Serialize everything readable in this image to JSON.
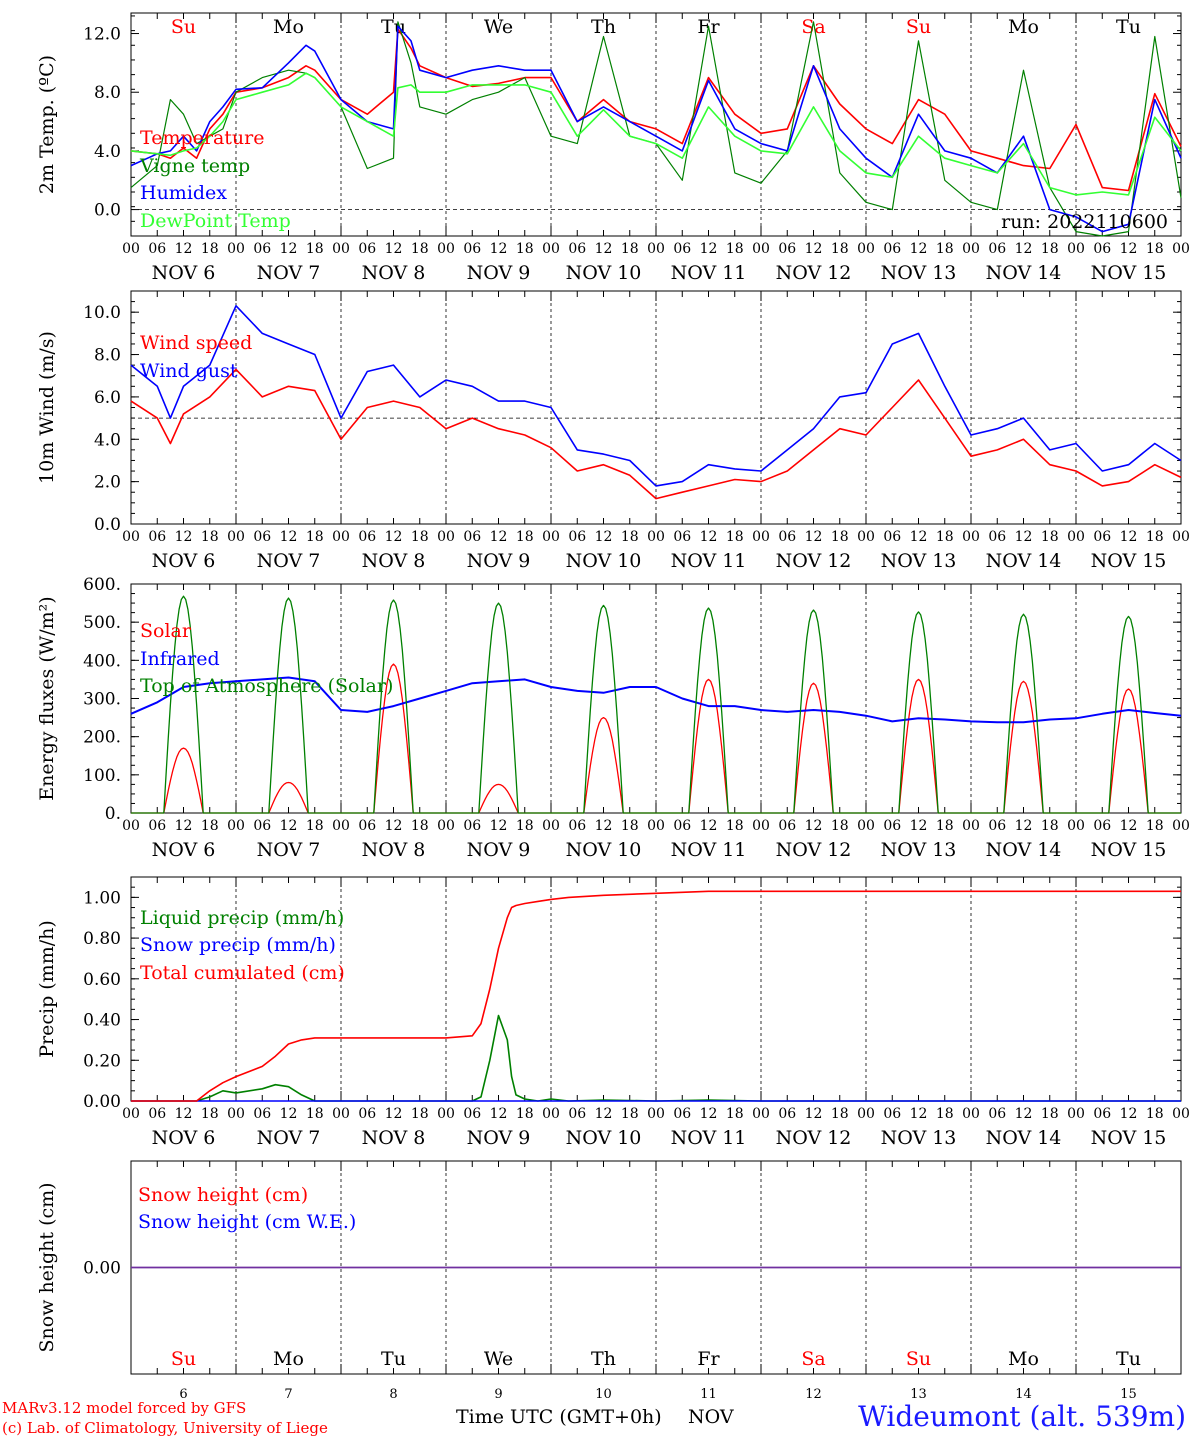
{
  "run_label": "run: 2022110600",
  "footer": {
    "credit_line1": "MARv3.12 model forced by GFS",
    "credit_line2": "(c) Lab. of Climatology, University of Liege",
    "xaxis_title": "Time UTC (GMT+0h)",
    "xaxis_month": "NOV",
    "station": "Wideumont (alt. 539m)"
  },
  "days": {
    "weekdays": [
      "Su",
      "Mo",
      "Tu",
      "We",
      "Th",
      "Fr",
      "Sa",
      "Su",
      "Mo",
      "Tu"
    ],
    "weekday_colors": [
      "#ff0000",
      "#000000",
      "#000000",
      "#000000",
      "#000000",
      "#000000",
      "#ff0000",
      "#ff0000",
      "#000000",
      "#000000"
    ],
    "date_labels": [
      "NOV 6",
      "NOV 7",
      "NOV 8",
      "NOV 9",
      "NOV 10",
      "NOV 11",
      "NOV 12",
      "NOV 13",
      "NOV 14",
      "NOV 15"
    ],
    "day_numbers": [
      "6",
      "7",
      "8",
      "9",
      "10",
      "11",
      "12",
      "13",
      "14",
      "15"
    ],
    "hour_ticks": [
      "00",
      "06",
      "12",
      "18"
    ],
    "final_tick": "00"
  },
  "colors": {
    "red": "#ff0000",
    "dark_green": "#008000",
    "blue": "#0000ff",
    "light_green": "#33ff33",
    "purple": "#7030a0",
    "axis": "#000000"
  },
  "chart_data": [
    {
      "type": "line",
      "ylabel": "2m Temp. (ºC)",
      "ylim": [
        -1.8,
        13.4
      ],
      "yticks": [
        "0.0",
        "4.0",
        "8.0",
        "12.0"
      ],
      "ytick_values": [
        0,
        4,
        8,
        12
      ],
      "reference_line": 0,
      "x_unit": "hours since NOV 6 00 UTC",
      "x": [
        0,
        6,
        9,
        12,
        15,
        18,
        21,
        24,
        30,
        36,
        40,
        42,
        48,
        54,
        60,
        61,
        64,
        66,
        72,
        78,
        84,
        90,
        96,
        102,
        108,
        114,
        120,
        126,
        132,
        138,
        144,
        150,
        156,
        162,
        168,
        174,
        180,
        186,
        192,
        198,
        204,
        210,
        216,
        222,
        228,
        234,
        240
      ],
      "series": [
        {
          "name": "Temperature",
          "color": "#ff0000",
          "values": [
            4.0,
            3.8,
            3.5,
            4.2,
            3.5,
            5.5,
            6.5,
            8.0,
            8.3,
            9.0,
            9.8,
            9.5,
            7.5,
            6.5,
            8.0,
            12.3,
            11.0,
            9.8,
            9.0,
            8.4,
            8.6,
            9.0,
            9.0,
            6.0,
            7.5,
            6.0,
            5.5,
            4.5,
            9.0,
            6.5,
            5.2,
            5.5,
            9.8,
            7.2,
            5.5,
            4.5,
            7.5,
            6.5,
            4.0,
            3.5,
            3.0,
            2.8,
            5.8,
            1.5,
            1.3,
            7.9,
            4.3
          ]
        },
        {
          "name": "Vigne temp",
          "color": "#008000",
          "values": [
            1.5,
            3.0,
            7.5,
            6.5,
            4.5,
            5.0,
            5.5,
            8.0,
            9.0,
            9.5,
            9.3,
            9.0,
            7.0,
            2.8,
            3.5,
            12.8,
            10.0,
            7.0,
            6.5,
            7.5,
            8.0,
            9.0,
            5.0,
            4.5,
            11.8,
            5.0,
            4.5,
            2.0,
            12.5,
            2.5,
            1.8,
            4.0,
            12.8,
            2.5,
            0.5,
            0.0,
            11.5,
            2.0,
            0.5,
            0.0,
            9.5,
            1.5,
            -1.5,
            -1.8,
            -1.5,
            11.8,
            0.8
          ]
        },
        {
          "name": "Humidex",
          "color": "#0000ff",
          "values": [
            3.0,
            3.8,
            4.0,
            5.0,
            4.0,
            6.0,
            7.0,
            8.2,
            8.3,
            10.0,
            11.2,
            10.8,
            7.5,
            6.0,
            5.5,
            12.5,
            11.5,
            9.5,
            9.0,
            9.5,
            9.8,
            9.5,
            9.5,
            6.0,
            7.0,
            6.0,
            5.0,
            4.0,
            8.8,
            5.5,
            4.5,
            4.0,
            9.8,
            5.5,
            3.5,
            2.2,
            6.5,
            4.0,
            3.5,
            2.5,
            5.0,
            0.0,
            -0.5,
            -1.5,
            -1.0,
            7.5,
            3.5
          ]
        },
        {
          "name": "DewPoint Temp",
          "color": "#33ff33",
          "values": [
            4.0,
            3.8,
            3.7,
            4.0,
            4.2,
            5.0,
            6.0,
            7.5,
            8.0,
            8.5,
            9.3,
            9.0,
            7.0,
            6.0,
            5.0,
            8.3,
            8.5,
            8.0,
            8.0,
            8.5,
            8.5,
            8.5,
            8.0,
            5.0,
            6.8,
            5.0,
            4.5,
            3.5,
            7.0,
            5.0,
            4.0,
            3.8,
            7.0,
            4.0,
            2.5,
            2.2,
            5.0,
            3.5,
            3.0,
            2.5,
            4.5,
            1.5,
            1.0,
            1.2,
            1.0,
            6.3,
            4.0
          ]
        }
      ]
    },
    {
      "type": "line",
      "ylabel": "10m Wind (m/s)",
      "ylim": [
        0,
        11
      ],
      "yticks": [
        "0.0",
        "2.0",
        "4.0",
        "6.0",
        "8.0",
        "10.0"
      ],
      "ytick_values": [
        0,
        2,
        4,
        6,
        8,
        10
      ],
      "reference_line": 5,
      "x_unit": "hours since NOV 6 00 UTC",
      "x": [
        0,
        6,
        9,
        12,
        18,
        24,
        30,
        36,
        42,
        48,
        54,
        60,
        66,
        72,
        78,
        84,
        90,
        96,
        102,
        108,
        114,
        120,
        126,
        132,
        138,
        144,
        150,
        156,
        162,
        168,
        174,
        180,
        186,
        192,
        198,
        204,
        210,
        216,
        222,
        228,
        234,
        240
      ],
      "series": [
        {
          "name": "Wind speed",
          "color": "#ff0000",
          "values": [
            5.8,
            5.0,
            3.8,
            5.2,
            6.0,
            7.3,
            6.0,
            6.5,
            6.3,
            4.0,
            5.5,
            5.8,
            5.5,
            4.5,
            5.0,
            4.5,
            4.2,
            3.6,
            2.5,
            2.8,
            2.3,
            1.2,
            1.5,
            1.8,
            2.1,
            2.0,
            2.5,
            3.5,
            4.5,
            4.2,
            5.5,
            6.8,
            5.0,
            3.2,
            3.5,
            4.0,
            2.8,
            2.5,
            1.8,
            2.0,
            2.8,
            2.2
          ]
        },
        {
          "name": "Wind gust",
          "color": "#0000ff",
          "values": [
            7.5,
            6.5,
            5.0,
            6.5,
            7.5,
            10.3,
            9.0,
            8.5,
            8.0,
            5.0,
            7.2,
            7.5,
            6.0,
            6.8,
            6.5,
            5.8,
            5.8,
            5.5,
            3.5,
            3.3,
            3.0,
            1.8,
            2.0,
            2.8,
            2.6,
            2.5,
            3.5,
            4.5,
            6.0,
            6.2,
            8.5,
            9.0,
            6.5,
            4.2,
            4.5,
            5.0,
            3.5,
            3.8,
            2.5,
            2.8,
            3.8,
            3.0
          ]
        }
      ]
    },
    {
      "type": "line",
      "ylabel": "Energy fluxes (W/m²)",
      "ylim": [
        0,
        600
      ],
      "yticks": [
        "0.",
        "100.",
        "200.",
        "300.",
        "400.",
        "500.",
        "600."
      ],
      "ytick_values": [
        0,
        100,
        200,
        300,
        400,
        500,
        600
      ],
      "x_unit": "hours since NOV 6 00 UTC",
      "daily_curve": {
        "sunrise_hour": 7.5,
        "sunset_hour": 16.5
      },
      "series": [
        {
          "name": "Solar",
          "color": "#ff0000",
          "daily_peaks": [
            170,
            80,
            390,
            75,
            250,
            350,
            340,
            350,
            345,
            325
          ]
        },
        {
          "name": "Infrared",
          "color": "#0000ff",
          "x": [
            0,
            6,
            12,
            18,
            24,
            30,
            36,
            42,
            48,
            54,
            60,
            66,
            72,
            78,
            84,
            90,
            96,
            102,
            108,
            114,
            120,
            126,
            132,
            138,
            144,
            150,
            156,
            162,
            168,
            174,
            180,
            186,
            192,
            198,
            204,
            210,
            216,
            222,
            228,
            234,
            240
          ],
          "values": [
            260,
            290,
            330,
            340,
            345,
            350,
            355,
            345,
            270,
            265,
            280,
            300,
            320,
            340,
            345,
            350,
            330,
            320,
            315,
            330,
            330,
            300,
            280,
            280,
            270,
            265,
            270,
            265,
            255,
            240,
            248,
            245,
            240,
            238,
            238,
            245,
            248,
            260,
            270,
            262,
            255
          ]
        },
        {
          "name": "Top of Atmosphere (Solar)",
          "color": "#008000",
          "daily_peaks": [
            568,
            563,
            558,
            550,
            544,
            537,
            532,
            527,
            521,
            515
          ]
        }
      ]
    },
    {
      "type": "line",
      "ylabel": "Precip (mm/h)",
      "ylim": [
        0,
        1.1
      ],
      "yticks": [
        "0.00",
        "0.20",
        "0.40",
        "0.60",
        "0.80",
        "1.00"
      ],
      "ytick_values": [
        0,
        0.2,
        0.4,
        0.6,
        0.8,
        1.0
      ],
      "x_unit": "hours since NOV 6 00 UTC",
      "x": [
        0,
        15,
        18,
        21,
        24,
        30,
        33,
        36,
        39,
        42,
        48,
        60,
        72,
        78,
        80,
        82,
        84,
        86,
        87,
        88,
        90,
        93,
        96,
        100,
        108,
        120,
        132,
        144,
        168,
        192,
        216,
        240
      ],
      "series": [
        {
          "name": "Liquid precip (mm/h)",
          "color": "#008000",
          "values": [
            0,
            0,
            0.02,
            0.05,
            0.04,
            0.06,
            0.08,
            0.07,
            0.03,
            0,
            0,
            0,
            0,
            0,
            0.02,
            0.2,
            0.42,
            0.3,
            0.12,
            0.03,
            0.01,
            0,
            0.01,
            0,
            0.005,
            0,
            0.005,
            0,
            0,
            0,
            0,
            0
          ]
        },
        {
          "name": "Snow precip (mm/h)",
          "color": "#0000ff",
          "values": [
            0,
            0,
            0,
            0,
            0,
            0,
            0,
            0,
            0,
            0,
            0,
            0,
            0,
            0,
            0,
            0,
            0,
            0,
            0,
            0,
            0,
            0,
            0,
            0,
            0,
            0,
            0,
            0,
            0,
            0,
            0,
            0
          ]
        },
        {
          "name": "Total cumulated (cm)",
          "color": "#ff0000",
          "values": [
            0,
            0,
            0.05,
            0.09,
            0.12,
            0.17,
            0.22,
            0.28,
            0.3,
            0.31,
            0.31,
            0.31,
            0.31,
            0.32,
            0.38,
            0.55,
            0.75,
            0.9,
            0.95,
            0.96,
            0.97,
            0.98,
            0.99,
            1.0,
            1.01,
            1.02,
            1.03,
            1.03,
            1.03,
            1.03,
            1.03,
            1.03
          ]
        }
      ]
    },
    {
      "type": "line",
      "ylabel": "Snow height (cm)",
      "ylim": [
        -1,
        1
      ],
      "yticks": [
        "0.00"
      ],
      "ytick_values": [
        0
      ],
      "x_unit": "hours since NOV 6 00 UTC",
      "x": [
        0,
        240
      ],
      "series": [
        {
          "name": "Snow height (cm)",
          "color": "#ff0000",
          "values": [
            0,
            0
          ]
        },
        {
          "name": "Snow height (cm W.E.)",
          "color": "#0000ff",
          "values": [
            0,
            0
          ]
        }
      ]
    }
  ]
}
